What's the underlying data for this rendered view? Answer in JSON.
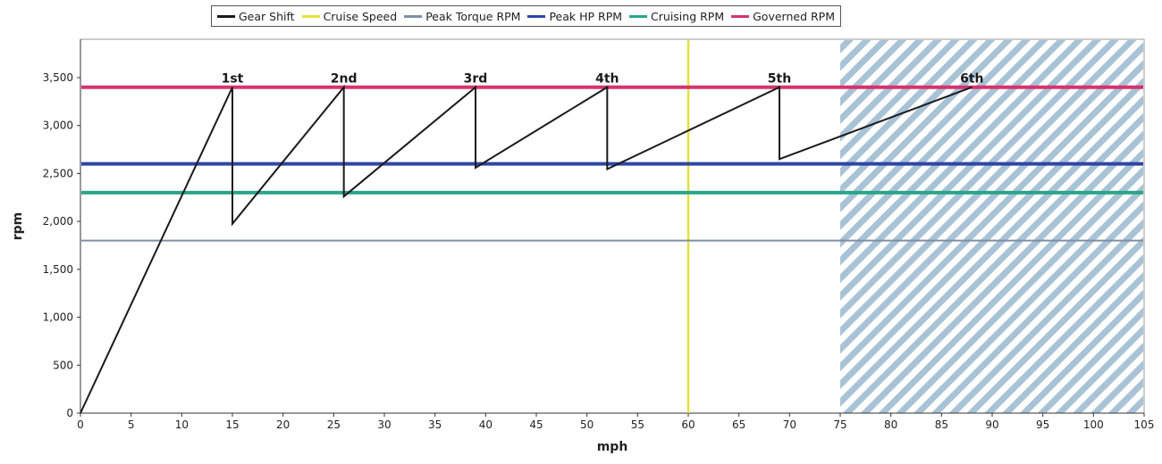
{
  "chart_data": {
    "type": "line",
    "xlabel": "mph",
    "ylabel": "rpm",
    "xlim": [
      0,
      105
    ],
    "ylim": [
      0,
      3900
    ],
    "xticks": [
      0,
      5,
      10,
      15,
      20,
      25,
      30,
      35,
      40,
      45,
      50,
      55,
      60,
      65,
      70,
      75,
      80,
      85,
      90,
      95,
      100,
      105
    ],
    "yticks": [
      0,
      500,
      1000,
      1500,
      2000,
      2500,
      3000,
      3500
    ],
    "ytick_labels": [
      "0",
      "500",
      "1,000",
      "1,500",
      "2,000",
      "2,500",
      "3,000",
      "3,500"
    ],
    "grid": false,
    "legend_position": "top",
    "series": [
      {
        "name": "Gear Shift",
        "color": "#1a1a1a",
        "kind": "line",
        "x": [
          0,
          15,
          15,
          26,
          26,
          39,
          39,
          52,
          52,
          69,
          69,
          88
        ],
        "y": [
          0,
          3400,
          1975,
          3400,
          2260,
          3400,
          2560,
          3400,
          2545,
          3400,
          2650,
          3400
        ]
      },
      {
        "name": "Cruise Speed",
        "color": "#e4e23a",
        "kind": "vertical",
        "value": 60
      },
      {
        "name": "Peak Torque RPM",
        "color": "#7f8fa6",
        "kind": "horizontal",
        "value": 1800
      },
      {
        "name": "Peak HP RPM",
        "color": "#3046a6",
        "kind": "horizontal",
        "value": 2600
      },
      {
        "name": "Cruising RPM",
        "color": "#2aa58a",
        "kind": "horizontal",
        "value": 2300
      },
      {
        "name": "Governed RPM",
        "color": "#d6336c",
        "kind": "horizontal",
        "value": 3400
      }
    ],
    "gear_labels": [
      {
        "text": "1st",
        "x": 15,
        "y": 3400
      },
      {
        "text": "2nd",
        "x": 26,
        "y": 3400
      },
      {
        "text": "3rd",
        "x": 39,
        "y": 3400
      },
      {
        "text": "4th",
        "x": 52,
        "y": 3400
      },
      {
        "text": "5th",
        "x": 69,
        "y": 3400
      },
      {
        "text": "6th",
        "x": 88,
        "y": 3400
      }
    ],
    "shaded_region": {
      "x_from": 75,
      "x_to": 105,
      "pattern": "diagonal-hatch",
      "color": "#a9c3d6"
    }
  }
}
